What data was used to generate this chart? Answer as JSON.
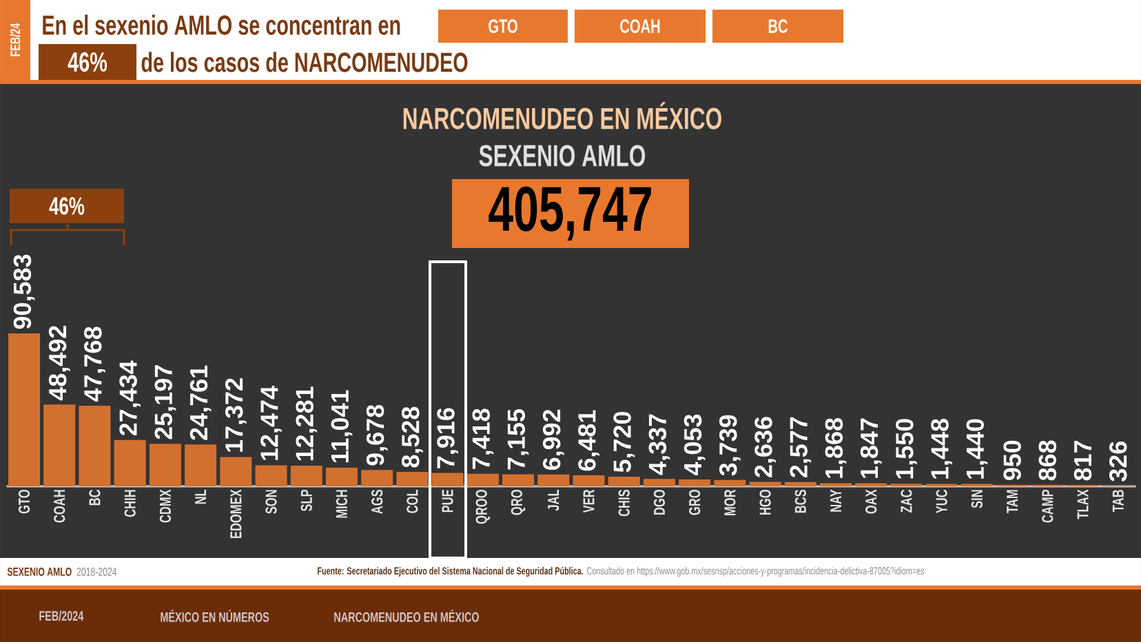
{
  "chart_data": {
    "type": "bar",
    "title": "NARCOMENUDEO EN MÉXICO",
    "subtitle": "SEXENIO AMLO",
    "categories": [
      "GTO",
      "COAH",
      "BC",
      "CHIH",
      "CDMX",
      "NL",
      "EDOMEX",
      "SON",
      "SLP",
      "MICH",
      "AGS",
      "COL",
      "PUE",
      "QROO",
      "QRO",
      "JAL",
      "VER",
      "CHIS",
      "DGO",
      "GRO",
      "MOR",
      "HGO",
      "BCS",
      "NAY",
      "OAX",
      "ZAC",
      "YUC",
      "SIN",
      "TAM",
      "CAMP",
      "TLAX",
      "TAB"
    ],
    "values": [
      90583,
      48492,
      47768,
      27434,
      25197,
      24761,
      17372,
      12474,
      12281,
      11041,
      9678,
      8528,
      7916,
      7418,
      7155,
      6992,
      6481,
      5720,
      4337,
      4053,
      3739,
      2636,
      2577,
      1868,
      1847,
      1550,
      1448,
      1440,
      950,
      868,
      817,
      326
    ],
    "value_labels": [
      "90,583",
      "48,492",
      "47,768",
      "27,434",
      "25,197",
      "24,761",
      "17,372",
      "12,474",
      "12,281",
      "11,041",
      "9,678",
      "8,528",
      "7,916",
      "7,418",
      "7,155",
      "6,992",
      "6,481",
      "5,720",
      "4,337",
      "4,053",
      "3,739",
      "2,636",
      "2,577",
      "1,868",
      "1,847",
      "1,550",
      "1,448",
      "1,440",
      "950",
      "868",
      "817",
      "326"
    ],
    "color": "#d2702f",
    "annotations": [
      "FEB/24",
      "En el sexenio AMLO se concentran en",
      "GTO",
      "COAH",
      "BC",
      "46%",
      "de los casos de NARCOMENUDEO",
      "46%",
      "405,747",
      "SEXENIO AMLO",
      "2018-2024",
      "Fuente: Secretariado Ejecutivo del Sistema Nacional de Seguridad Pública.",
      "Consultado en https://www.gob.mx/sesnsp/acciones-y-programas/incidencia-delictiva-87005?idiom=es",
      "FEB/2024",
      "MÉXICO EN NÚMEROS",
      "NARCOMENUDEO EN MÉXICO"
    ]
  }
}
